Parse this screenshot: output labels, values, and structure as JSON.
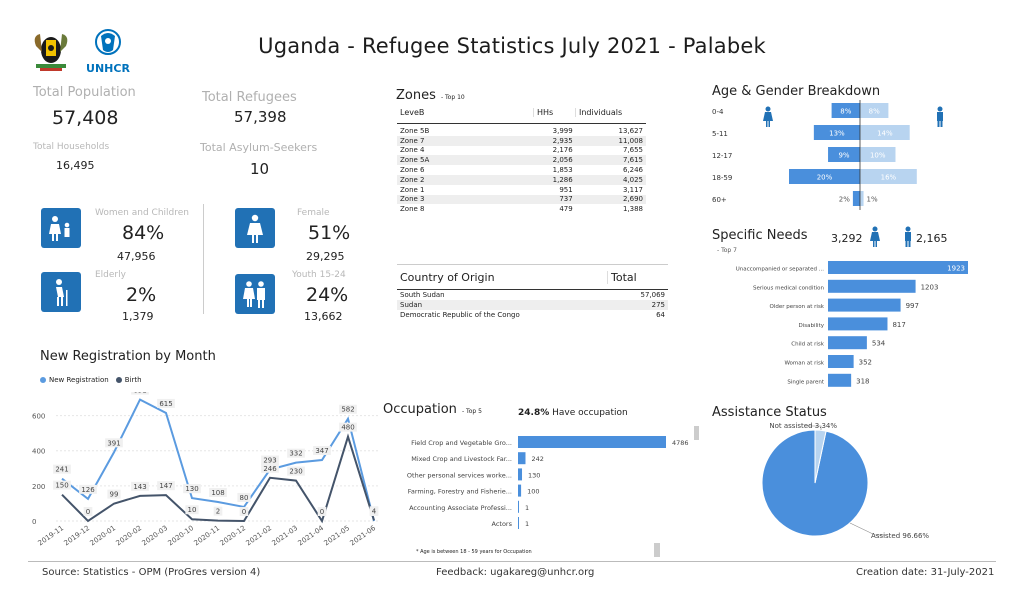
{
  "header": {
    "title": "Uganda - Refugee Statistics July 2021 - Palabek",
    "logo_unhcr": "UNHCR"
  },
  "kpis": {
    "total_population_label": "Total Population",
    "total_population": "57,408",
    "total_refugees_label": "Total Refugees",
    "total_refugees": "57,398",
    "total_households_label": "Total Households",
    "total_households": "16,495",
    "total_asylum_label": "Total Asylum-Seekers",
    "total_asylum": "10"
  },
  "demographics": {
    "women_children_label": "Women and Children",
    "women_children_pct": "84%",
    "women_children_count": "47,956",
    "female_label": "Female",
    "female_pct": "51%",
    "female_count": "29,295",
    "elderly_label": "Elderly",
    "elderly_pct": "2%",
    "elderly_count": "1,379",
    "youth_label": "Youth 15-24",
    "youth_pct": "24%",
    "youth_count": "13,662"
  },
  "zones": {
    "title": "Zones",
    "subtitle": "- Top 10",
    "headers": [
      "LeveB",
      "HHs",
      "Individuals"
    ],
    "rows": [
      [
        "Zone 5B",
        "3,999",
        "13,627"
      ],
      [
        "Zone 7",
        "2,935",
        "11,008"
      ],
      [
        "Zone 4",
        "2,176",
        "7,655"
      ],
      [
        "Zone 5A",
        "2,056",
        "7,615"
      ],
      [
        "Zone 6",
        "1,853",
        "6,246"
      ],
      [
        "Zone 2",
        "1,286",
        "4,025"
      ],
      [
        "Zone 1",
        "951",
        "3,117"
      ],
      [
        "Zone 3",
        "737",
        "2,690"
      ],
      [
        "Zone 8",
        "479",
        "1,388"
      ]
    ]
  },
  "origin": {
    "headers": [
      "Country of Origin",
      "Total"
    ],
    "rows": [
      [
        "South Sudan",
        "57,069"
      ],
      [
        "Sudan",
        "275"
      ],
      [
        "Democratic Republic of the Congo",
        "64"
      ]
    ]
  },
  "age_gender": {
    "title": "Age & Gender Breakdown",
    "colors": {
      "male": "#4a8fdc",
      "female": "#b8d4f0"
    }
  },
  "specific_needs": {
    "title": "Specific Needs",
    "subtitle": "- Top 7",
    "female_total": "3,292",
    "male_total": "2,165",
    "color": "#4a8fdc"
  },
  "registration": {
    "title": "New Registration by Month",
    "legend_new": "New Registration",
    "legend_birth": "Birth",
    "color_new": "#5b9be0",
    "color_birth": "#44546a"
  },
  "occupation": {
    "title": "Occupation",
    "subtitle": "- Top 5",
    "have_pct": "24.8%",
    "have_label": "Have occupation",
    "note": "* Age is between 18 - 59 years for Occupation",
    "color": "#4a8fdc"
  },
  "assistance": {
    "title": "Assistance Status",
    "colors": {
      "assisted": "#4a8fdc",
      "not_assisted": "#b8d4f0"
    }
  },
  "footer": {
    "source": "Source: Statistics - OPM (ProGres version 4)",
    "feedback": "Feedback: ugakareg@unhcr.org",
    "creation": "Creation date: 31-July-2021"
  },
  "chart_data": [
    {
      "type": "bar",
      "name": "age_gender",
      "categories": [
        "0-4",
        "5-11",
        "12-17",
        "18-59",
        "60+"
      ],
      "series": [
        {
          "name": "Male",
          "values": [
            8,
            13,
            9,
            20,
            2
          ],
          "labels": [
            "8%",
            "13%",
            "9%",
            "20%",
            "2%"
          ]
        },
        {
          "name": "Female",
          "values": [
            8,
            14,
            10,
            16,
            1
          ],
          "labels": [
            "8%",
            "14%",
            "10%",
            "16%",
            "1%"
          ]
        }
      ]
    },
    {
      "type": "bar",
      "name": "specific_needs",
      "categories": [
        "Unaccompanied or separated ...",
        "Serious medical condition",
        "Older person at risk",
        "Disability",
        "Child at risk",
        "Woman at risk",
        "Single parent"
      ],
      "values": [
        1923,
        1203,
        997,
        817,
        534,
        352,
        318
      ]
    },
    {
      "type": "line",
      "name": "registration",
      "x": [
        "2019-11",
        "2019-12",
        "2020-01",
        "2020-02",
        "2020-03",
        "2020-10",
        "2020-11",
        "2020-12",
        "2021-02",
        "2021-03",
        "2021-04",
        "2021-05",
        "2021-06"
      ],
      "series": [
        {
          "name": "New Registration",
          "values": [
            241,
            126,
            391,
            691,
            615,
            130,
            108,
            80,
            293,
            332,
            347,
            582,
            0
          ]
        },
        {
          "name": "Birth",
          "values": [
            150,
            0,
            99,
            143,
            147,
            10,
            2,
            0,
            246,
            230,
            0,
            480,
            4
          ]
        }
      ],
      "y_ticks": [
        "0",
        "200",
        "400",
        "600"
      ],
      "ylim": [
        0,
        700
      ]
    },
    {
      "type": "bar",
      "name": "occupation",
      "categories": [
        "Field Crop and Vegetable Gro...",
        "Mixed Crop and Livestock Far...",
        "Other personal services worke...",
        "Farming, Forestry and Fisherie...",
        "Accounting Associate Professi...",
        "Actors"
      ],
      "values": [
        4786,
        242,
        130,
        100,
        1,
        1
      ]
    },
    {
      "type": "pie",
      "name": "assistance",
      "categories": [
        "Assisted",
        "Not assisted"
      ],
      "values": [
        96.66,
        3.34
      ],
      "labels": [
        "Assisted 96.66%",
        "Not assisted 3.34%"
      ]
    }
  ]
}
